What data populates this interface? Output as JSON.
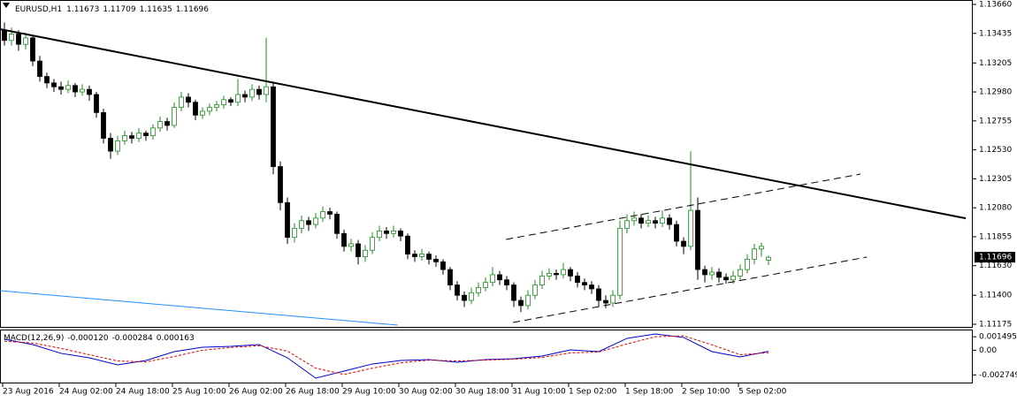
{
  "chart_data": {
    "type": "candlestick",
    "symbol": "EURUSD,H1",
    "bull_color": "#ffffff",
    "bull_stroke": "#1e8c1e",
    "bear_color": "#000000",
    "xlim": [
      -0.625,
      136.875
    ],
    "xticks": [
      {
        "value": 0,
        "label": "23 Aug 2016"
      },
      {
        "value": 8,
        "label": "24 Aug 02:00"
      },
      {
        "value": 16,
        "label": "24 Aug 18:00"
      },
      {
        "value": 24,
        "label": "25 Aug 10:00"
      },
      {
        "value": 32,
        "label": "26 Aug 02:00"
      },
      {
        "value": 40,
        "label": "26 Aug 18:00"
      },
      {
        "value": 48,
        "label": "29 Aug 10:00"
      },
      {
        "value": 56,
        "label": "30 Aug 02:00"
      },
      {
        "value": 64,
        "label": "30 Aug 18:00"
      },
      {
        "value": 72,
        "label": "31 Aug 10:00"
      },
      {
        "value": 80,
        "label": "1 Sep 02:00"
      },
      {
        "value": 88,
        "label": "1 Sep 18:00"
      },
      {
        "value": 96,
        "label": "2 Sep 10:00"
      },
      {
        "value": 104,
        "label": "5 Sep 02:00"
      }
    ],
    "ylim": [
      1.11175,
      1.1366
    ],
    "yticks": [
      {
        "value": 1.1366,
        "label": "1.13660"
      },
      1.13435,
      1.13205,
      {
        "value": 1.1298,
        "label": "1.12980"
      },
      1.12755,
      {
        "value": 1.1253,
        "label": "1.12530"
      },
      1.12305,
      {
        "value": 1.1208,
        "label": "1.12080"
      },
      1.11855,
      {
        "value": 1.1163,
        "label": "1.11630"
      },
      {
        "value": 1.114,
        "label": "1.11400"
      },
      1.11175
    ],
    "ohlc": [
      [
        1.1346,
        1.1352,
        1.1334,
        1.1338
      ],
      [
        1.1338,
        1.1348,
        1.1334,
        1.1343
      ],
      [
        1.1343,
        1.1346,
        1.133,
        1.1335
      ],
      [
        1.1335,
        1.1344,
        1.1331,
        1.134
      ],
      [
        1.134,
        1.1342,
        1.1318,
        1.1322
      ],
      [
        1.1322,
        1.1326,
        1.1306,
        1.131
      ],
      [
        1.131,
        1.1313,
        1.1301,
        1.1305
      ],
      [
        1.1305,
        1.1308,
        1.1298,
        1.1302
      ],
      [
        1.1302,
        1.1306,
        1.1296,
        1.13
      ],
      [
        1.13,
        1.1307,
        1.1297,
        1.1303
      ],
      [
        1.1303,
        1.1305,
        1.1294,
        1.1298
      ],
      [
        1.1298,
        1.1304,
        1.1295,
        1.13
      ],
      [
        1.13,
        1.1303,
        1.1291,
        1.1296
      ],
      [
        1.1296,
        1.1298,
        1.1278,
        1.1282
      ],
      [
        1.1282,
        1.1285,
        1.1258,
        1.1262
      ],
      [
        1.1262,
        1.1266,
        1.1246,
        1.1252
      ],
      [
        1.1252,
        1.1264,
        1.1249,
        1.126
      ],
      [
        1.126,
        1.1268,
        1.1257,
        1.1264
      ],
      [
        1.1264,
        1.1267,
        1.1258,
        1.1262
      ],
      [
        1.1262,
        1.127,
        1.1259,
        1.1266
      ],
      [
        1.1266,
        1.1268,
        1.126,
        1.1264
      ],
      [
        1.1264,
        1.1273,
        1.1261,
        1.127
      ],
      [
        1.127,
        1.1279,
        1.1267,
        1.1275
      ],
      [
        1.1275,
        1.1278,
        1.1268,
        1.1272
      ],
      [
        1.1272,
        1.129,
        1.127,
        1.1286
      ],
      [
        1.1286,
        1.1298,
        1.1283,
        1.1294
      ],
      [
        1.1294,
        1.1297,
        1.1286,
        1.129
      ],
      [
        1.129,
        1.1292,
        1.1276,
        1.128
      ],
      [
        1.128,
        1.1286,
        1.1277,
        1.1283
      ],
      [
        1.1283,
        1.1289,
        1.128,
        1.1286
      ],
      [
        1.1286,
        1.1291,
        1.1283,
        1.1288
      ],
      [
        1.1288,
        1.1295,
        1.1285,
        1.1292
      ],
      [
        1.1292,
        1.1294,
        1.1287,
        1.129
      ],
      [
        1.129,
        1.1308,
        1.1287,
        1.1296
      ],
      [
        1.1296,
        1.1299,
        1.129,
        1.1294
      ],
      [
        1.1294,
        1.1304,
        1.1291,
        1.13
      ],
      [
        1.13,
        1.1303,
        1.1292,
        1.1296
      ],
      [
        1.1296,
        1.134,
        1.129,
        1.1302
      ],
      [
        1.1302,
        1.1306,
        1.1234,
        1.124
      ],
      [
        1.124,
        1.1244,
        1.1206,
        1.1212
      ],
      [
        1.1212,
        1.1216,
        1.118,
        1.1185
      ],
      [
        1.1185,
        1.1196,
        1.1181,
        1.1192
      ],
      [
        1.1192,
        1.1202,
        1.1188,
        1.1198
      ],
      [
        1.1198,
        1.1201,
        1.119,
        1.1195
      ],
      [
        1.1195,
        1.1204,
        1.1192,
        1.12
      ],
      [
        1.12,
        1.1209,
        1.1197,
        1.1205
      ],
      [
        1.1205,
        1.1208,
        1.1199,
        1.1203
      ],
      [
        1.1203,
        1.1205,
        1.1184,
        1.1188
      ],
      [
        1.1188,
        1.1191,
        1.1174,
        1.1178
      ],
      [
        1.1178,
        1.1184,
        1.1174,
        1.118
      ],
      [
        1.118,
        1.1183,
        1.1164,
        1.117
      ],
      [
        1.117,
        1.1179,
        1.1166,
        1.1175
      ],
      [
        1.1175,
        1.1189,
        1.1172,
        1.1185
      ],
      [
        1.1185,
        1.1194,
        1.1182,
        1.119
      ],
      [
        1.119,
        1.1193,
        1.1184,
        1.1188
      ],
      [
        1.1188,
        1.1194,
        1.1185,
        1.119
      ],
      [
        1.119,
        1.1192,
        1.1182,
        1.1186
      ],
      [
        1.1186,
        1.1188,
        1.1168,
        1.1172
      ],
      [
        1.1172,
        1.1175,
        1.1166,
        1.117
      ],
      [
        1.117,
        1.1176,
        1.1167,
        1.1172
      ],
      [
        1.1172,
        1.1174,
        1.1164,
        1.1168
      ],
      [
        1.1168,
        1.1171,
        1.1162,
        1.1166
      ],
      [
        1.1166,
        1.1168,
        1.1156,
        1.116
      ],
      [
        1.116,
        1.1162,
        1.1144,
        1.1148
      ],
      [
        1.1148,
        1.1151,
        1.1136,
        1.114
      ],
      [
        1.114,
        1.1143,
        1.1131,
        1.1136
      ],
      [
        1.1136,
        1.1146,
        1.1133,
        1.1142
      ],
      [
        1.1142,
        1.115,
        1.1139,
        1.1146
      ],
      [
        1.1146,
        1.1154,
        1.1143,
        1.115
      ],
      [
        1.115,
        1.1162,
        1.1147,
        1.1156
      ],
      [
        1.1156,
        1.1159,
        1.1148,
        1.1152
      ],
      [
        1.1152,
        1.1155,
        1.1144,
        1.1148
      ],
      [
        1.1148,
        1.115,
        1.1131,
        1.1136
      ],
      [
        1.1136,
        1.1139,
        1.1127,
        1.1132
      ],
      [
        1.1132,
        1.1144,
        1.1129,
        1.114
      ],
      [
        1.114,
        1.1152,
        1.1137,
        1.1148
      ],
      [
        1.1148,
        1.1159,
        1.1145,
        1.1155
      ],
      [
        1.1155,
        1.1161,
        1.1152,
        1.1157
      ],
      [
        1.1157,
        1.116,
        1.1152,
        1.1156
      ],
      [
        1.1156,
        1.1165,
        1.1153,
        1.116
      ],
      [
        1.116,
        1.1162,
        1.1151,
        1.1155
      ],
      [
        1.1155,
        1.1158,
        1.1146,
        1.115
      ],
      [
        1.115,
        1.1153,
        1.1144,
        1.1148
      ],
      [
        1.1148,
        1.1151,
        1.1141,
        1.1145
      ],
      [
        1.1145,
        1.1148,
        1.1131,
        1.1136
      ],
      [
        1.1136,
        1.114,
        1.113,
        1.1134
      ],
      [
        1.1134,
        1.1144,
        1.1131,
        1.114
      ],
      [
        1.114,
        1.1198,
        1.1137,
        1.1192
      ],
      [
        1.1192,
        1.1203,
        1.1188,
        1.1198
      ],
      [
        1.1198,
        1.1205,
        1.1194,
        1.12
      ],
      [
        1.12,
        1.1203,
        1.1192,
        1.1196
      ],
      [
        1.1196,
        1.1202,
        1.1193,
        1.1198
      ],
      [
        1.1198,
        1.1201,
        1.1192,
        1.1196
      ],
      [
        1.1196,
        1.1206,
        1.1193,
        1.12
      ],
      [
        1.12,
        1.1203,
        1.1191,
        1.1195
      ],
      [
        1.1195,
        1.1198,
        1.1178,
        1.1182
      ],
      [
        1.1182,
        1.1185,
        1.1172,
        1.1178
      ],
      [
        1.1178,
        1.1252,
        1.1175,
        1.1206
      ],
      [
        1.1206,
        1.1216,
        1.1152,
        1.116
      ],
      [
        1.116,
        1.1163,
        1.115,
        1.1156
      ],
      [
        1.1156,
        1.1162,
        1.1152,
        1.1158
      ],
      [
        1.1158,
        1.1161,
        1.115,
        1.1154
      ],
      [
        1.1154,
        1.1157,
        1.1149,
        1.1152
      ],
      [
        1.1152,
        1.1159,
        1.1149,
        1.1155
      ],
      [
        1.1155,
        1.1164,
        1.1152,
        1.116
      ],
      [
        1.116,
        1.1172,
        1.1157,
        1.1168
      ],
      [
        1.1168,
        1.118,
        1.1164,
        1.1176
      ],
      [
        1.1176,
        1.1181,
        1.117,
        1.1178
      ],
      [
        1.11673,
        1.11709,
        1.11635,
        1.11696
      ]
    ],
    "lines": [
      {
        "x": [
          -0.625,
          135.9
        ],
        "y": [
          1.13468,
          1.11998
        ],
        "color": "#000000",
        "width": 2,
        "dash": "none"
      },
      {
        "x": [
          70.9,
          121
        ],
        "y": [
          1.11834,
          1.12342
        ],
        "color": "#000000",
        "width": 1,
        "dash": "8 5"
      },
      {
        "x": [
          71.9,
          121.9
        ],
        "y": [
          1.11189,
          1.11697
        ],
        "color": "#000000",
        "width": 1,
        "dash": "8 5"
      },
      {
        "x": [
          -0.625,
          55.6
        ],
        "y": [
          1.11436,
          1.11168
        ],
        "color": "#1e90ff",
        "width": 1,
        "dash": "none"
      }
    ],
    "macd": {
      "title": "MACD(12,26,9)",
      "readout": [
        "-0.000120",
        "-0.000284",
        "0.000163"
      ],
      "ylim": [
        -0.0036,
        0.0022
      ],
      "yticks": [
        0.001495,
        {
          "value": 0,
          "label": "0.00"
        },
        -0.002749
      ],
      "x": [
        0,
        4,
        8,
        12,
        16,
        20,
        24,
        28,
        32,
        36,
        40,
        44,
        48,
        52,
        56,
        60,
        64,
        68,
        72,
        76,
        80,
        84,
        88,
        92,
        96,
        100,
        104,
        108
      ],
      "series": [
        {
          "color": "#0000cc",
          "dash": "none",
          "values": [
            0.00122,
            0.00063,
            -0.00035,
            -0.00085,
            -0.00163,
            -0.00114,
            -0.00016,
            0.00033,
            0.00043,
            0.00063,
            -0.00085,
            -0.00311,
            -0.00232,
            -0.00153,
            -0.00114,
            -0.00104,
            -0.00134,
            -0.00104,
            -0.00094,
            -0.00065,
            4e-05,
            -0.00016,
            0.00132,
            0.00181,
            0.00142,
            -0.00016,
            -0.00075,
            -0.00012
          ]
        },
        {
          "color": "#e00000",
          "dash": "3 2",
          "values": [
            0.001,
            0.0008,
            0.0002,
            -0.0005,
            -0.0012,
            -0.0013,
            -0.0007,
            0,
            0.0003,
            0.0005,
            -0.0001,
            -0.002,
            -0.0027,
            -0.002,
            -0.0014,
            -0.0011,
            -0.0012,
            -0.0011,
            -0.001,
            -0.0008,
            -0.0003,
            -0.0002,
            0.0007,
            0.0015,
            0.0016,
            0.0006,
            -0.0005,
            -0.000284
          ]
        }
      ]
    }
  }
}
